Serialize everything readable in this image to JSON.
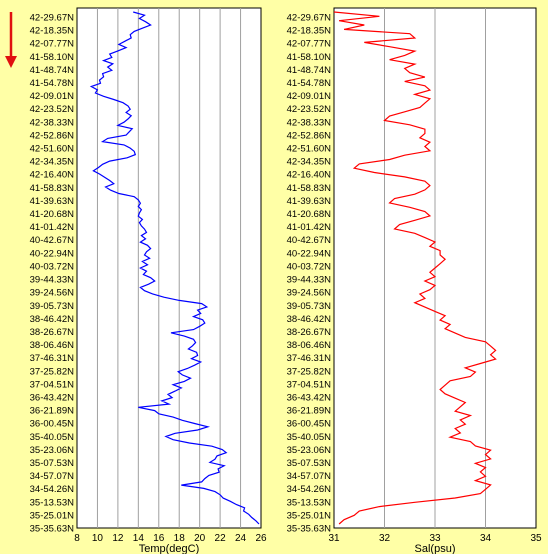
{
  "colors": {
    "background": "#ffffa6",
    "plot_background": "#ffffff",
    "temperature_line": "#0000ff",
    "salinity_line": "#ff0000",
    "arrow": "#e01010",
    "grid": "#a0a0a0"
  },
  "direction_arrow": "down-arrow-icon",
  "chart_data": [
    {
      "type": "line",
      "orientation": "vertical",
      "xlabel": "Temp(degC)",
      "ylabel": "",
      "xlim": [
        8,
        26
      ],
      "xticks": [
        8,
        10,
        12,
        14,
        16,
        18,
        20,
        22,
        24,
        26
      ],
      "grid": true,
      "y_tick_labels": [
        "42-29.67N",
        "42-18.35N",
        "42-07.77N",
        "41-58.10N",
        "41-48.74N",
        "41-54.78N",
        "42-09.01N",
        "42-23.52N",
        "42-38.33N",
        "42-52.86N",
        "42-51.60N",
        "42-34.35N",
        "42-16.40N",
        "41-58.83N",
        "41-39.63N",
        "41-20.68N",
        "41-01.42N",
        "40-42.67N",
        "40-22.94N",
        "40-03.72N",
        "39-44.33N",
        "39-24.56N",
        "39-05.73N",
        "38-46.42N",
        "38-26.67N",
        "38-06.46N",
        "37-46.31N",
        "37-25.82N",
        "37-04.51N",
        "36-43.42N",
        "36-21.89N",
        "36-00.45N",
        "35-40.05N",
        "35-23.06N",
        "35-07.53N",
        "34-57.07N",
        "34-54.26N",
        "35-13.53N",
        "35-25.01N",
        "35-35.63N"
      ],
      "series": [
        {
          "x": [
            13.5,
            14.6,
            14.1,
            14.7,
            15.2,
            14.4,
            13.6,
            13.2,
            13.3,
            12.7,
            12.1,
            12.8,
            12.0,
            11.2,
            11.4,
            10.6,
            11.5,
            11.0,
            11.4,
            10.5,
            10.6,
            10.2,
            10.3,
            9.4,
            10.0,
            9.8,
            10.6,
            11.6,
            12.5,
            13.0,
            13.2,
            12.8,
            13.3,
            13.0,
            12.6,
            12.0,
            13.4,
            13.1,
            12.8,
            11.0,
            10.5,
            12.6,
            13.2,
            13.6,
            13.7,
            12.9,
            11.2,
            10.5,
            10.1,
            9.6,
            10.2,
            10.7,
            11.2,
            11.6,
            10.8,
            11.3,
            12.1,
            13.6,
            14.0,
            14.2,
            14.0,
            14.3,
            14.1,
            14.0,
            14.4,
            14.1,
            14.3,
            14.6,
            14.8,
            14.3,
            14.7,
            14.2,
            14.9,
            15.2,
            14.8,
            14.6,
            15.1,
            14.4,
            14.9,
            14.2,
            14.8,
            14.5,
            15.2,
            15.6,
            15.0,
            14.2,
            14.6,
            15.4,
            16.5,
            18.0,
            20.2,
            20.7,
            19.8,
            20.1,
            19.4,
            20.3,
            20.5,
            20.0,
            19.4,
            17.2,
            18.5,
            19.4,
            19.6,
            19.3,
            18.9,
            19.7,
            19.8,
            19.2,
            20.1,
            19.5,
            18.8,
            17.9,
            18.3,
            19.1,
            18.5,
            17.4,
            18.2,
            17.6,
            16.9,
            17.3,
            16.3,
            17.0,
            14.0,
            15.6,
            16.0,
            17.4,
            18.3,
            19.5,
            20.8,
            19.8,
            17.6,
            16.7,
            17.4,
            19.0,
            21.2,
            22.2,
            22.6,
            21.7,
            21.5,
            21.0,
            22.4,
            21.8,
            21.9,
            20.9,
            20.5,
            20.2,
            18.2,
            20.4,
            21.5,
            22.0,
            22.3,
            23.0,
            23.6,
            24.4,
            24.3,
            24.8,
            25.1,
            25.5,
            25.8
          ]
        }
      ]
    },
    {
      "type": "line",
      "orientation": "vertical",
      "xlabel": "Sal(psu)",
      "ylabel": "",
      "xlim": [
        31,
        35
      ],
      "xticks": [
        31,
        32,
        33,
        34,
        35
      ],
      "grid": true,
      "y_tick_labels": [
        "42-29.67N",
        "42-18.35N",
        "42-07.77N",
        "41-58.10N",
        "41-48.74N",
        "41-54.78N",
        "42-09.01N",
        "42-23.52N",
        "42-38.33N",
        "42-52.86N",
        "42-51.60N",
        "42-34.35N",
        "42-16.40N",
        "41-58.83N",
        "41-39.63N",
        "41-20.68N",
        "41-01.42N",
        "40-42.67N",
        "40-22.94N",
        "40-03.72N",
        "39-44.33N",
        "39-24.56N",
        "39-05.73N",
        "38-46.42N",
        "38-26.67N",
        "38-06.46N",
        "37-46.31N",
        "37-25.82N",
        "37-04.51N",
        "36-43.42N",
        "36-21.89N",
        "36-00.45N",
        "35-40.05N",
        "35-23.06N",
        "35-07.53N",
        "34-57.07N",
        "34-54.26N",
        "35-13.53N",
        "35-25.01N",
        "35-35.63N"
      ],
      "series": [
        {
          "x": [
            31.0,
            31.9,
            31.1,
            31.6,
            31.2,
            32.5,
            32.6,
            31.6,
            32.1,
            32.6,
            32.4,
            32.1,
            32.6,
            32.4,
            32.5,
            32.8,
            32.4,
            32.8,
            32.9,
            32.6,
            32.9,
            32.8,
            32.7,
            32.4,
            32.1,
            32.0,
            32.5,
            32.8,
            32.8,
            32.7,
            32.9,
            32.8,
            32.9,
            32.4,
            32.1,
            31.5,
            31.4,
            31.8,
            32.4,
            32.8,
            32.9,
            32.8,
            32.6,
            32.2,
            32.1,
            32.5,
            32.8,
            32.9,
            32.6,
            32.3,
            32.2,
            32.6,
            32.8,
            33.0,
            32.9,
            33.1,
            33.1,
            33.2,
            33.1,
            33.0,
            32.9,
            33.0,
            32.8,
            33.0,
            32.9,
            32.7,
            32.8,
            32.6,
            32.8,
            33.0,
            33.2,
            33.1,
            33.3,
            33.2,
            33.4,
            33.6,
            34.0,
            34.1,
            34.2,
            34.1,
            34.2,
            33.9,
            33.6,
            33.8,
            33.7,
            33.3,
            33.2,
            33.1,
            33.2,
            33.4,
            33.6,
            33.5,
            33.4,
            33.7,
            33.5,
            33.6,
            33.4,
            33.5,
            33.3,
            33.7,
            33.8,
            34.1,
            34.0,
            34.1,
            33.8,
            34.0,
            33.9,
            34.0,
            33.8,
            34.1,
            34.0,
            33.9,
            33.4,
            32.6,
            31.9,
            31.5,
            31.4,
            31.2,
            31.1
          ]
        }
      ]
    }
  ]
}
